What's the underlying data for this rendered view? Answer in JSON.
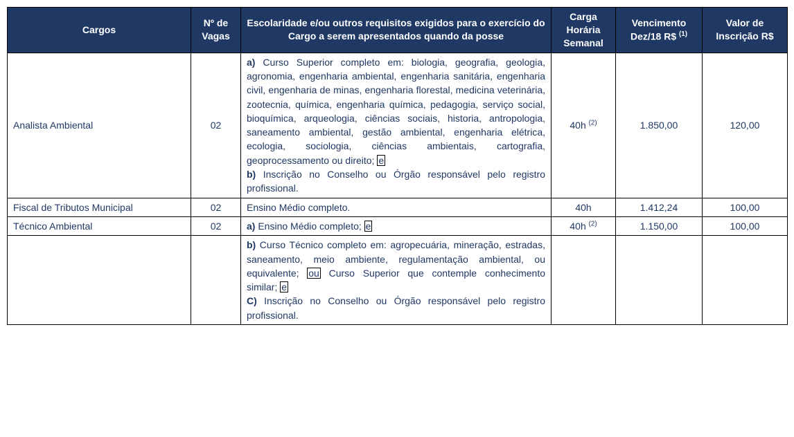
{
  "headers": {
    "cargos": "Cargos",
    "vagas": "Nº de Vagas",
    "requisitos": "Escolaridade e/ou outros requisitos exigidos para o exercício do Cargo a serem apresentados quando da posse",
    "carga": "Carga Horária Semanal",
    "vencimento_label": "Vencimento Dez/18 R$ ",
    "vencimento_sup": "(1)",
    "valor": "Valor de Inscrição R$"
  },
  "rows": [
    {
      "cargo": "Analista Ambiental",
      "vagas": "02",
      "req_a_bold": "a)",
      "req_a_text": " Curso Superior completo em: biologia, geografia, geologia, agronomia, engenharia ambiental, engenharia sanitária, engenharia civil, engenharia de minas, engenharia florestal, medicina veterinária, zootecnia, química, engenharia química, pedagogia, serviço social, bioquímica, arqueologia, ciências sociais, historia, antropologia, saneamento ambiental, gestão ambiental, engenharia elétrica, ecologia, sociologia, ciências ambientais, cartografia, geoprocessamento ou direito; ",
      "req_a_box": "e",
      "req_b_bold": "b)",
      "req_b_text": " Inscrição no Conselho ou Órgão responsável pelo registro profissional.",
      "carga": "40h ",
      "carga_sup": "(2)",
      "vencimento": "1.850,00",
      "valor": "120,00"
    },
    {
      "cargo": "Fiscal de Tributos Municipal",
      "vagas": "02",
      "req_text": "Ensino Médio completo.",
      "carga": "40h",
      "vencimento": "1.412,24",
      "valor": "100,00"
    },
    {
      "cargo": "Técnico Ambiental",
      "vagas": "02",
      "req_a_bold": "a)",
      "req_a_text": " Ensino Médio completo; ",
      "req_a_box": "e",
      "carga": "40h ",
      "carga_sup": "(2)",
      "vencimento": "1.150,00",
      "valor": "100,00"
    },
    {
      "req_b_bold": "b)",
      "req_b_text": " Curso Técnico completo em: agropecuária, mineração, estradas, saneamento, meio ambiente, regulamentação ambiental, ou equivalente; ",
      "req_b_box": "ou",
      "req_b_text2": " Curso Superior que contemple conhecimento similar; ",
      "req_b_box2": "e",
      "req_c_bold": "C)",
      "req_c_text": " Inscrição no Conselho ou Órgão responsável pelo registro profissional."
    }
  ]
}
